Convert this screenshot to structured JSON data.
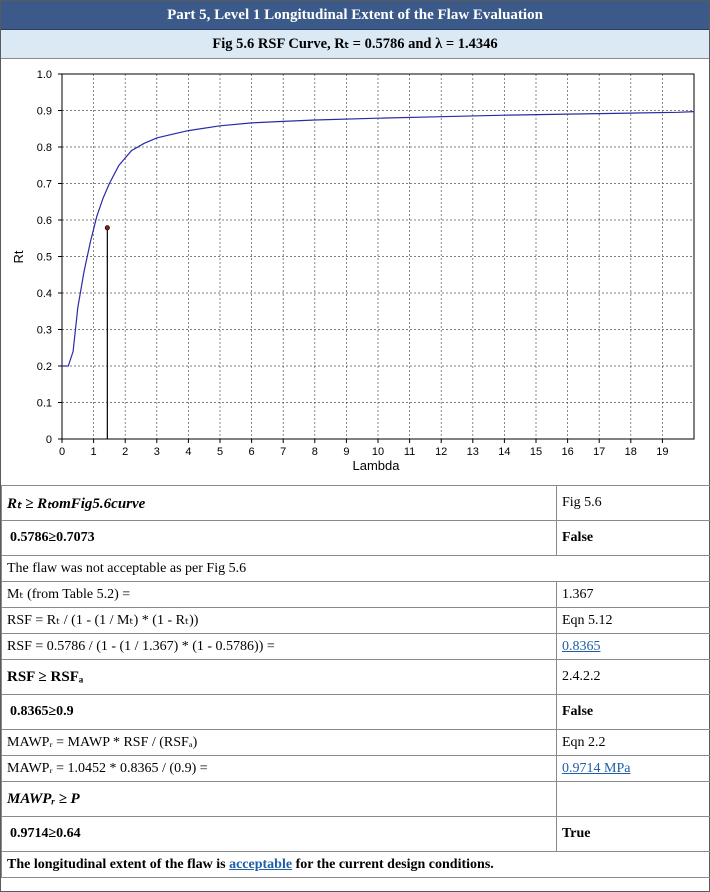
{
  "header": {
    "title": "Part 5, Level 1 Longitudinal Extent of the Flaw Evaluation"
  },
  "subheader": {
    "title": "Fig 5.6 RSF Curve, Rₜ = 0.5786 and λ = 1.4346"
  },
  "chart_data": {
    "type": "line",
    "xlabel": "Lambda",
    "ylabel": "Rt",
    "xlim": [
      0,
      20
    ],
    "ylim": [
      0,
      1.0
    ],
    "x_ticks": [
      "0",
      "1",
      "2",
      "3",
      "4",
      "5",
      "6",
      "7",
      "8",
      "9",
      "10",
      "11",
      "12",
      "13",
      "14",
      "15",
      "16",
      "17",
      "18",
      "19"
    ],
    "y_ticks": [
      "0",
      "0.1",
      "0.2",
      "0.3",
      "0.4",
      "0.5",
      "0.6",
      "0.7",
      "0.8",
      "0.9",
      "1.0"
    ],
    "grid": true,
    "series": [
      {
        "x": [
          0,
          0.2,
          0.35,
          0.5,
          0.7,
          0.9,
          1.1,
          1.3,
          1.5,
          1.8,
          2.2,
          2.6,
          3.0,
          3.5,
          4.0,
          5.0,
          6.0,
          7.0,
          8.0,
          10.0,
          12.0,
          14.0,
          16.0,
          18.0,
          19.5,
          20.0
        ],
        "y": [
          0.2,
          0.2,
          0.24,
          0.36,
          0.46,
          0.54,
          0.61,
          0.66,
          0.7,
          0.75,
          0.79,
          0.81,
          0.825,
          0.835,
          0.845,
          0.858,
          0.866,
          0.87,
          0.874,
          0.879,
          0.883,
          0.887,
          0.89,
          0.893,
          0.895,
          0.897
        ],
        "color": "#2a2aa8"
      }
    ],
    "marker": {
      "x": 1.4346,
      "y": 0.5786,
      "style": "stem"
    }
  },
  "table": {
    "r1": {
      "left": "Rₜ ≥ RₜomFig5.6curve",
      "right": "Fig 5.6"
    },
    "r2": {
      "left": "0.5786≥0.7073",
      "right": "False"
    },
    "r3": {
      "left": "The flaw was not acceptable as per Fig 5.6"
    },
    "r4": {
      "left": "Mₜ (from Table 5.2) =",
      "right": "1.367"
    },
    "r5": {
      "left": "RSF = Rₜ / (1 - (1 / Mₜ) * (1 - Rₜ))",
      "right": "Eqn 5.12"
    },
    "r6": {
      "left": "RSF = 0.5786 / (1 - (1 / 1.367) * (1 - 0.5786)) =",
      "right": "0.8365"
    },
    "r7": {
      "left": "RSF ≥ RSFₐ",
      "right": "2.4.2.2"
    },
    "r8": {
      "left": "0.8365≥0.9",
      "right": "False"
    },
    "r9": {
      "left": "MAWPᵣ = MAWP * RSF / (RSFₐ)",
      "right": "Eqn 2.2"
    },
    "r10": {
      "left": "MAWPᵣ = 1.0452 * 0.8365 / (0.9) =",
      "right": "0.9714 MPa"
    },
    "r11": {
      "left": "MAWPᵣ ≥ P",
      "right": ""
    },
    "r12": {
      "left": "0.9714≥0.64",
      "right": "True"
    },
    "r13": {
      "pre": "The longitudinal extent of the flaw is ",
      "link": "acceptable",
      "post": " for the current design conditions."
    }
  }
}
